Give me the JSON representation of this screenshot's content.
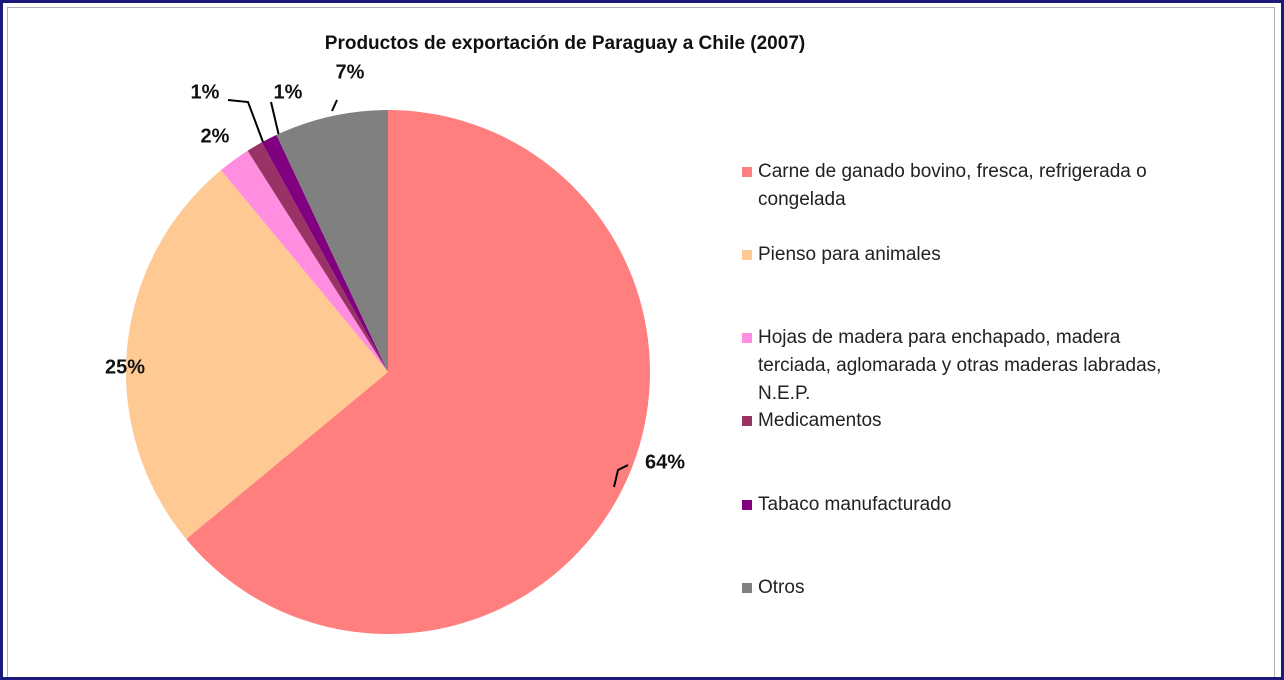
{
  "chart_data": {
    "type": "pie",
    "title": "Productos de exportación de Paraguay a Chile (2007)",
    "categories": [
      "Carne de ganado  bovino, fresca, refrigerada  o congelada",
      "Pienso para animales",
      "Hojas de madera para enchapado,  madera terciada, aglomarada  y otras maderas labradas,  N.E.P.",
      "Medicamentos",
      "Tabaco manufacturado",
      "Otros"
    ],
    "values": [
      64,
      25,
      2,
      1,
      1,
      7
    ],
    "value_labels": [
      "64%",
      "25%",
      "2%",
      "1%",
      "1%",
      "7%"
    ],
    "colors": [
      "#ff7f7f",
      "#ffc993",
      "#ff8ee0",
      "#993366",
      "#800080",
      "#808080"
    ],
    "legend": "right"
  }
}
